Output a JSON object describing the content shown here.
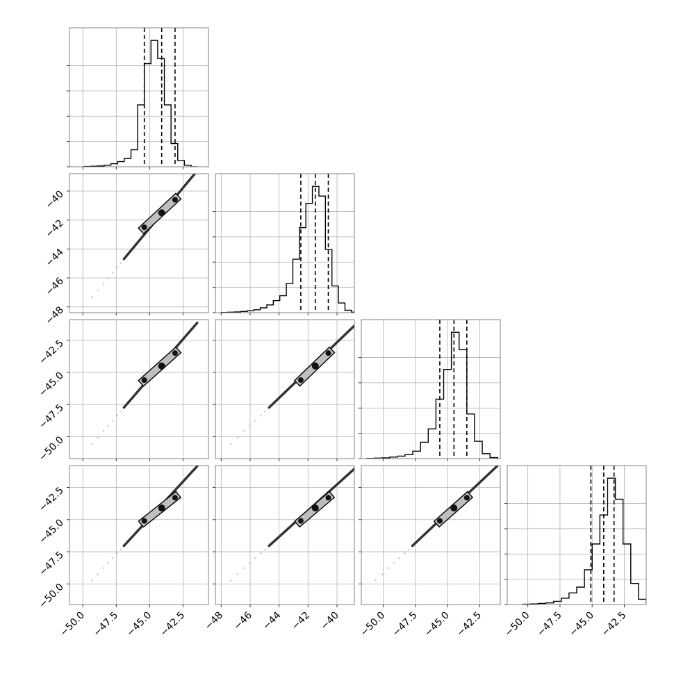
{
  "figure": {
    "kind": "corner-plot",
    "params": [
      "",
      "",
      "",
      ""
    ]
  },
  "chart_data": {
    "type": "corner",
    "n_params": 4,
    "grid": true,
    "colors": {
      "line": "#000000",
      "grid": "#b0b0b0",
      "frame": "#808080",
      "contour_fill": "#bfbfbf",
      "scatter": "#aaaaaa"
    },
    "axes": [
      {
        "range": [
          -51.0,
          -40.6
        ],
        "ticks": [
          -50.0,
          -47.5,
          -45.0,
          -42.5
        ],
        "tick_labels": [
          "−50.0",
          "−47.5",
          "−45.0",
          "−42.5"
        ]
      },
      {
        "range": [
          -48.4,
          -38.8
        ],
        "ticks": [
          -48,
          -46,
          -44,
          -42,
          -40
        ],
        "tick_labels": [
          "−48",
          "−46",
          "−44",
          "−42",
          "−40"
        ]
      },
      {
        "range": [
          -51.7,
          -40.9
        ],
        "ticks": [
          -50.0,
          -47.5,
          -45.0,
          -42.5
        ],
        "tick_labels": [
          "−50.0",
          "−47.5",
          "−45.0",
          "−42.5"
        ]
      },
      {
        "range": [
          -51.6,
          -40.8
        ],
        "ticks": [
          -50.0,
          -47.5,
          -45.0,
          -42.5
        ],
        "tick_labels": [
          "−50.0",
          "−47.5",
          "−45.0",
          "−42.5"
        ]
      }
    ],
    "histograms": [
      {
        "bins": [
          -49.9,
          -49.4,
          -48.9,
          -48.4,
          -47.9,
          -47.4,
          -46.9,
          -46.4,
          -45.9,
          -45.4,
          -44.9,
          -44.4,
          -43.9,
          -43.4,
          -42.9,
          -42.4,
          -41.9,
          -41.4
        ],
        "counts": [
          0.5,
          1,
          1.5,
          3,
          6,
          10,
          16,
          33,
          120,
          200,
          245,
          210,
          120,
          45,
          12,
          3,
          0
        ],
        "quantiles": [
          -45.4,
          -44.1,
          -43.1
        ]
      },
      {
        "bins": [
          -48.0,
          -47.55,
          -47.1,
          -46.65,
          -46.2,
          -45.75,
          -45.3,
          -44.85,
          -44.4,
          -43.95,
          -43.5,
          -43.05,
          -42.6,
          -42.15,
          -41.7,
          -41.25,
          -40.8,
          -40.35,
          -39.9,
          -39.45,
          -39.0,
          -38.55
        ],
        "counts": [
          0.5,
          1,
          1.5,
          2.5,
          4,
          6,
          10,
          16,
          25,
          35,
          60,
          110,
          175,
          225,
          260,
          240,
          130,
          55,
          20,
          5,
          1
        ],
        "quantiles": [
          -42.5,
          -41.5,
          -40.6
        ]
      },
      {
        "bins": [
          -51.3,
          -50.7,
          -50.1,
          -49.5,
          -48.9,
          -48.3,
          -47.7,
          -47.1,
          -46.5,
          -45.9,
          -45.3,
          -44.7,
          -44.1,
          -43.5,
          -42.9,
          -42.3,
          -41.7,
          -41.1
        ],
        "counts": [
          0.5,
          1,
          1.5,
          3,
          5,
          8,
          15,
          33,
          60,
          120,
          180,
          255,
          220,
          90,
          35,
          10,
          2
        ],
        "quantiles": [
          -45.6,
          -44.5,
          -43.5
        ]
      },
      {
        "bins": [
          -50.4,
          -49.8,
          -49.2,
          -48.6,
          -48.0,
          -47.4,
          -46.8,
          -46.2,
          -45.6,
          -45.0,
          -44.4,
          -43.8,
          -43.2,
          -42.6,
          -42.0,
          -41.4,
          -40.8
        ],
        "counts": [
          0.5,
          1,
          2,
          3,
          6,
          12,
          22,
          33,
          66,
          115,
          170,
          240,
          200,
          115,
          40,
          10
        ],
        "quantiles": [
          -45.1,
          -44.1,
          -43.3
        ]
      }
    ],
    "scatter": {
      "trail_t": [
        0.07,
        0.12,
        0.17,
        0.21,
        0.25,
        0.29,
        0.32,
        0.35,
        0.38,
        0.41,
        0.44,
        0.47,
        0.5,
        0.53,
        0.56
      ],
      "median_t": [
        0.55,
        0.71,
        0.85
      ],
      "contour_t": [
        0.5,
        0.9
      ]
    }
  }
}
